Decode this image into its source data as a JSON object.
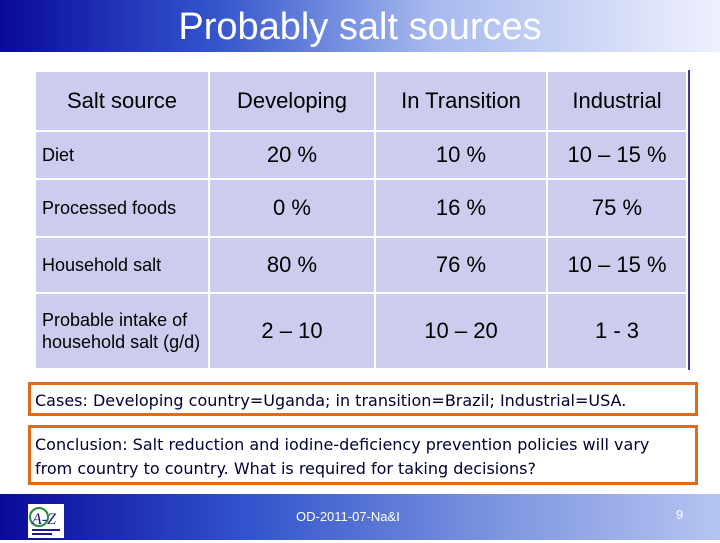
{
  "title": "Probably salt sources",
  "table": {
    "headers": [
      "Salt source",
      "Developing",
      "In Transition",
      "Industrial"
    ],
    "rows": [
      {
        "label": "Diet",
        "values": [
          "20 %",
          "10 %",
          "10 – 15 %"
        ]
      },
      {
        "label": "Processed foods",
        "values": [
          "0 %",
          "16 %",
          "75 %"
        ]
      },
      {
        "label": "Household salt",
        "values": [
          "80 %",
          "76 %",
          "10 – 15 %"
        ]
      },
      {
        "label": "Probable intake of household salt (g/d)",
        "values": [
          "2 – 10",
          "10 – 20",
          "1 - 3"
        ]
      }
    ]
  },
  "cases": "Cases: Developing country=Uganda; in transition=Brazil; Industrial=USA.",
  "conclusion": "Conclusion: Salt reduction and iodine-deficiency prevention policies will vary from country to country.   What is required for taking decisions?",
  "footer": {
    "text": "OD-2011-07-Na&I",
    "page": "9",
    "logo_text": "A-Z"
  },
  "colors": {
    "title_gradient_start": "#0a0a9a",
    "table_fill": "#ccccee",
    "box_border": "#e06a1a"
  },
  "icons": [
    "a-z-logo-icon"
  ]
}
